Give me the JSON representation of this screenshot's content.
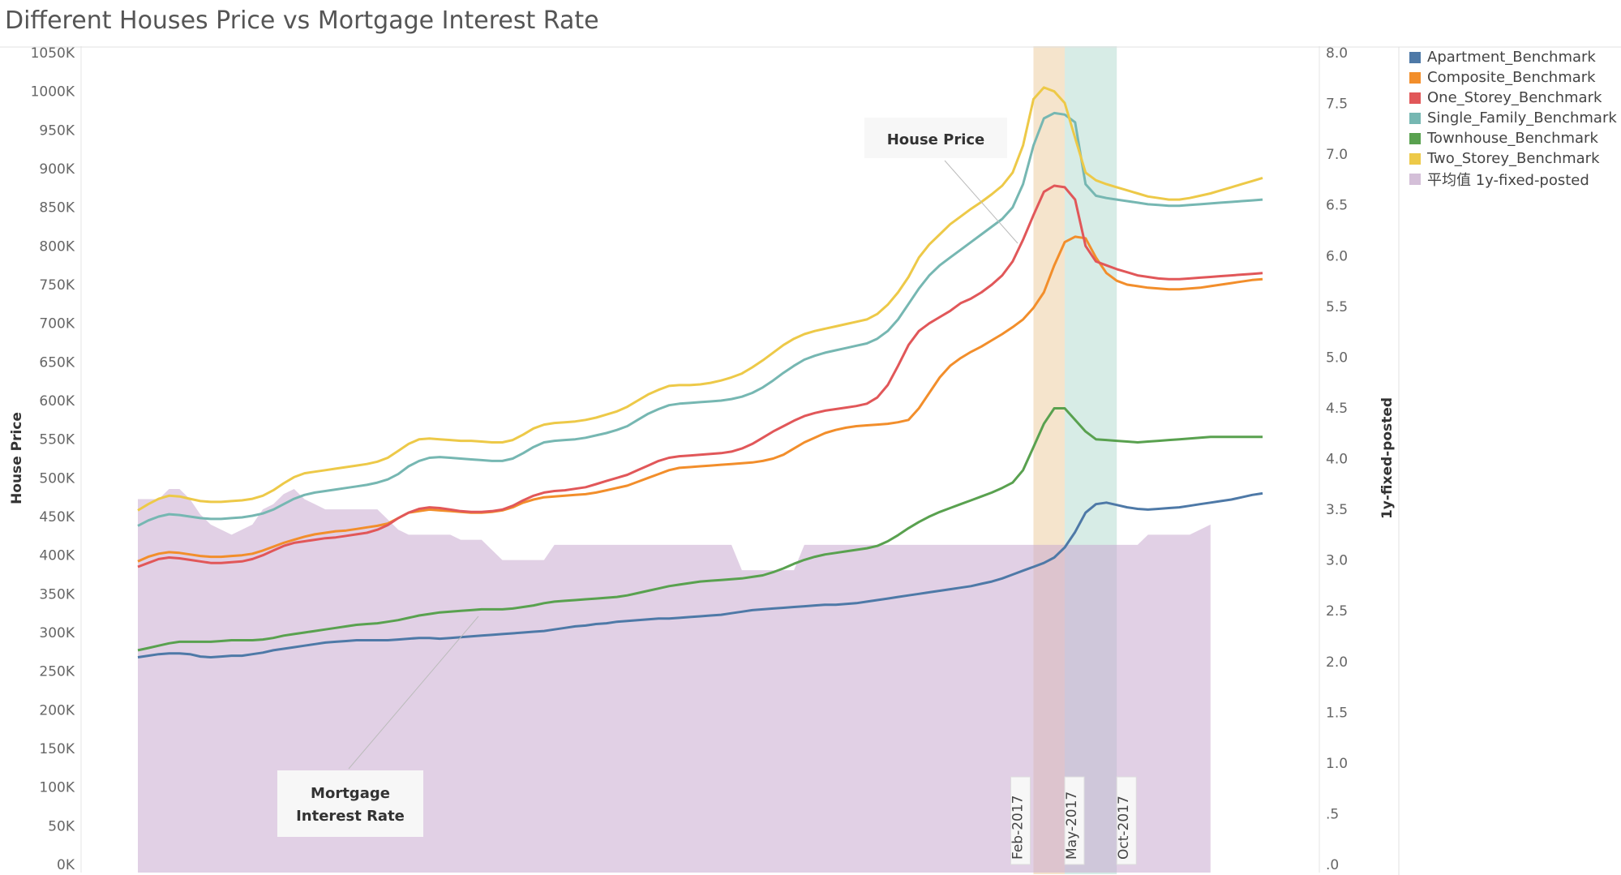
{
  "title": "Different Houses Price vs Mortgage Interest Rate",
  "chart_data": {
    "type": "line",
    "title": "Different Houses Price vs Mortgage Interest Rate",
    "ylabel": "House Price",
    "y2label": "1y-fixed-posted",
    "ylim": [
      0,
      1050
    ],
    "y2lim": [
      0,
      8
    ],
    "grid": false,
    "legend_position": "right",
    "y_ticks": [
      "0K",
      "50K",
      "100K",
      "150K",
      "200K",
      "250K",
      "300K",
      "350K",
      "400K",
      "450K",
      "500K",
      "550K",
      "600K",
      "650K",
      "700K",
      "750K",
      "800K",
      "850K",
      "900K",
      "950K",
      "1000K",
      "1050K"
    ],
    "y2_ticks": [
      ".0",
      ".5",
      "1.0",
      "1.5",
      "2.0",
      "2.5",
      "3.0",
      "3.5",
      "4.0",
      "4.5",
      "5.0",
      "5.5",
      "6.0",
      "6.5",
      "7.0",
      "7.5",
      "8.0"
    ],
    "x": [
      0,
      1,
      2,
      3,
      4,
      5,
      6,
      7,
      8,
      9,
      10,
      11,
      12,
      13,
      14,
      15,
      16,
      17,
      18,
      19,
      20,
      21,
      22,
      23,
      24,
      25,
      26,
      27,
      28,
      29,
      30,
      31,
      32,
      33,
      34,
      35,
      36,
      37,
      38,
      39,
      40,
      41,
      42,
      43,
      44,
      45,
      46,
      47,
      48,
      49,
      50,
      51,
      52,
      53,
      54,
      55,
      56,
      57,
      58,
      59,
      60,
      61,
      62,
      63,
      64,
      65,
      66,
      67,
      68,
      69,
      70,
      71,
      72,
      73,
      74,
      75,
      76,
      77,
      78,
      79,
      80,
      81,
      82,
      83,
      84,
      85,
      86,
      87,
      88,
      89,
      90,
      91,
      92,
      93,
      94,
      95,
      96,
      97,
      98,
      99,
      100,
      101,
      102,
      103,
      104,
      105,
      106,
      107,
      108
    ],
    "series": [
      {
        "name": "Apartment_Benchmark",
        "color": "#4e79a7",
        "values": [
          268,
          270,
          272,
          273,
          273,
          272,
          269,
          268,
          269,
          270,
          270,
          272,
          274,
          277,
          279,
          281,
          283,
          285,
          287,
          288,
          289,
          290,
          290,
          290,
          290,
          291,
          292,
          293,
          293,
          292,
          293,
          294,
          295,
          296,
          297,
          298,
          299,
          300,
          301,
          302,
          304,
          306,
          308,
          309,
          311,
          312,
          314,
          315,
          316,
          317,
          318,
          318,
          319,
          320,
          321,
          322,
          323,
          325,
          327,
          329,
          330,
          331,
          332,
          333,
          334,
          335,
          336,
          336,
          337,
          338,
          340,
          342,
          344,
          346,
          348,
          350,
          352,
          354,
          356,
          358,
          360,
          363,
          366,
          370,
          375,
          380,
          385,
          390,
          397,
          410,
          430,
          455,
          466,
          468,
          465,
          462,
          460,
          459,
          460,
          461,
          462,
          464,
          466,
          468,
          470,
          472,
          475,
          478,
          480
        ]
      },
      {
        "name": "Composite_Benchmark",
        "color": "#f28e2b",
        "values": [
          392,
          398,
          402,
          404,
          403,
          401,
          399,
          398,
          398,
          399,
          400,
          402,
          406,
          411,
          416,
          420,
          424,
          427,
          429,
          431,
          432,
          434,
          436,
          438,
          441,
          448,
          455,
          457,
          459,
          458,
          457,
          456,
          455,
          455,
          456,
          458,
          462,
          468,
          472,
          475,
          476,
          477,
          478,
          479,
          481,
          484,
          487,
          490,
          495,
          500,
          505,
          510,
          513,
          514,
          515,
          516,
          517,
          518,
          519,
          520,
          522,
          525,
          530,
          538,
          546,
          552,
          558,
          562,
          565,
          567,
          568,
          569,
          570,
          572,
          575,
          590,
          610,
          630,
          645,
          655,
          663,
          670,
          678,
          686,
          695,
          705,
          720,
          740,
          775,
          805,
          812,
          810,
          785,
          765,
          755,
          750,
          748,
          746,
          745,
          744,
          744,
          745,
          746,
          748,
          750,
          752,
          754,
          756,
          757
        ]
      },
      {
        "name": "One_Storey_Benchmark",
        "color": "#e15759",
        "values": [
          385,
          390,
          395,
          397,
          396,
          394,
          392,
          390,
          390,
          391,
          392,
          395,
          400,
          406,
          412,
          416,
          418,
          420,
          422,
          423,
          425,
          427,
          429,
          433,
          439,
          448,
          455,
          460,
          462,
          461,
          459,
          457,
          456,
          456,
          457,
          459,
          464,
          471,
          477,
          481,
          483,
          484,
          486,
          488,
          492,
          496,
          500,
          504,
          510,
          516,
          522,
          526,
          528,
          529,
          530,
          531,
          532,
          534,
          538,
          544,
          552,
          560,
          567,
          574,
          580,
          584,
          587,
          589,
          591,
          593,
          596,
          604,
          620,
          645,
          672,
          690,
          700,
          708,
          716,
          726,
          732,
          740,
          750,
          762,
          780,
          808,
          840,
          870,
          878,
          876,
          860,
          800,
          780,
          775,
          770,
          766,
          762,
          760,
          758,
          757,
          757,
          758,
          759,
          760,
          761,
          762,
          763,
          764,
          765
        ]
      },
      {
        "name": "Single_Family_Benchmark",
        "color": "#76b7b2",
        "values": [
          438,
          445,
          450,
          453,
          452,
          450,
          448,
          447,
          447,
          448,
          449,
          451,
          454,
          459,
          466,
          473,
          478,
          481,
          483,
          485,
          487,
          489,
          491,
          494,
          498,
          505,
          515,
          522,
          526,
          527,
          526,
          525,
          524,
          523,
          522,
          522,
          525,
          532,
          540,
          546,
          548,
          549,
          550,
          552,
          555,
          558,
          562,
          567,
          575,
          583,
          589,
          594,
          596,
          597,
          598,
          599,
          600,
          602,
          605,
          610,
          617,
          626,
          636,
          645,
          653,
          658,
          662,
          665,
          668,
          671,
          674,
          680,
          690,
          705,
          725,
          745,
          762,
          775,
          785,
          795,
          805,
          815,
          825,
          835,
          850,
          880,
          930,
          965,
          972,
          970,
          960,
          880,
          865,
          862,
          860,
          858,
          856,
          854,
          853,
          852,
          852,
          853,
          854,
          855,
          856,
          857,
          858,
          859,
          860
        ]
      },
      {
        "name": "Townhouse_Benchmark",
        "color": "#59a14f",
        "values": [
          277,
          280,
          283,
          286,
          288,
          288,
          288,
          288,
          289,
          290,
          290,
          290,
          291,
          293,
          296,
          298,
          300,
          302,
          304,
          306,
          308,
          310,
          311,
          312,
          314,
          316,
          319,
          322,
          324,
          326,
          327,
          328,
          329,
          330,
          330,
          330,
          331,
          333,
          335,
          338,
          340,
          341,
          342,
          343,
          344,
          345,
          346,
          348,
          351,
          354,
          357,
          360,
          362,
          364,
          366,
          367,
          368,
          369,
          370,
          372,
          374,
          378,
          383,
          389,
          394,
          398,
          401,
          403,
          405,
          407,
          409,
          412,
          418,
          426,
          435,
          443,
          450,
          456,
          461,
          466,
          471,
          476,
          481,
          487,
          494,
          510,
          540,
          570,
          590,
          590,
          575,
          560,
          550,
          549,
          548,
          547,
          546,
          547,
          548,
          549,
          550,
          551,
          552,
          553,
          553,
          553,
          553,
          553,
          553
        ]
      },
      {
        "name": "Two_Storey_Benchmark",
        "color": "#edc948",
        "values": [
          458,
          466,
          473,
          477,
          476,
          473,
          470,
          469,
          469,
          470,
          471,
          473,
          477,
          484,
          493,
          501,
          506,
          508,
          510,
          512,
          514,
          516,
          518,
          521,
          526,
          535,
          544,
          550,
          551,
          550,
          549,
          548,
          548,
          547,
          546,
          546,
          549,
          556,
          564,
          569,
          571,
          572,
          573,
          575,
          578,
          582,
          586,
          592,
          600,
          608,
          614,
          619,
          620,
          620,
          621,
          623,
          626,
          630,
          635,
          643,
          652,
          662,
          672,
          680,
          686,
          690,
          693,
          696,
          699,
          702,
          705,
          712,
          724,
          740,
          760,
          785,
          802,
          815,
          828,
          838,
          848,
          857,
          867,
          878,
          895,
          930,
          990,
          1005,
          1000,
          985,
          940,
          895,
          885,
          880,
          876,
          872,
          868,
          864,
          862,
          860,
          860,
          862,
          865,
          868,
          872,
          876,
          880,
          884,
          888
        ]
      },
      {
        "name": "平均值 1y-fixed-posted",
        "color": "#d4bfd8",
        "values": [
          3.6,
          3.6,
          3.6,
          3.7,
          3.7,
          3.6,
          3.5,
          3.4,
          3.3,
          3.3,
          3.4,
          3.45,
          3.5,
          3.6,
          3.7,
          3.6,
          3.5,
          3.5,
          3.5,
          3.5,
          3.5,
          3.5,
          3.5,
          3.5,
          3.5,
          3.4,
          3.3,
          3.2,
          3.2,
          3.2,
          3.15,
          3.1,
          3.1,
          3.1,
          3.05,
          3.0,
          3.0,
          3.0,
          3.0,
          3.1,
          3.15,
          3.15,
          3.15,
          3.15,
          3.15,
          3.15,
          3.15,
          3.15,
          3.15,
          3.15,
          3.15,
          3.15,
          3.15,
          3.15,
          3.15,
          3.15,
          3.15,
          3.15,
          3.15,
          3.15,
          3.15,
          3.15,
          3.15,
          3.15,
          3.15,
          3.15,
          3.15,
          3.15,
          3.15,
          3.15,
          3.15,
          3.15,
          3.15,
          3.15,
          3.15,
          3.15,
          3.15,
          3.15,
          3.15,
          3.15,
          3.15,
          3.15,
          3.15,
          3.15,
          3.15,
          3.15,
          3.15,
          3.15,
          3.15,
          3.15,
          3.15,
          3.15,
          3.15,
          3.15,
          3.15,
          3.15,
          3.15,
          3.15,
          3.15,
          3.15,
          3.2,
          3.25,
          3.25,
          3.25,
          3.25,
          3.25,
          3.25,
          3.3,
          3.35
        ]
      }
    ],
    "rate_area_points": [
      [
        0,
        3.6
      ],
      [
        2,
        3.6
      ],
      [
        3,
        3.7
      ],
      [
        4,
        3.7
      ],
      [
        5,
        3.6
      ],
      [
        6,
        3.45
      ],
      [
        7,
        3.35
      ],
      [
        8,
        3.3
      ],
      [
        9,
        3.25
      ],
      [
        10,
        3.3
      ],
      [
        11,
        3.35
      ],
      [
        12,
        3.5
      ],
      [
        13,
        3.55
      ],
      [
        14,
        3.65
      ],
      [
        15,
        3.7
      ],
      [
        16,
        3.6
      ],
      [
        17,
        3.55
      ],
      [
        18,
        3.5
      ],
      [
        23,
        3.5
      ],
      [
        24,
        3.4
      ],
      [
        25,
        3.3
      ],
      [
        26,
        3.25
      ],
      [
        30,
        3.25
      ],
      [
        31,
        3.2
      ],
      [
        33,
        3.2
      ],
      [
        35,
        3.0
      ],
      [
        39,
        3.0
      ],
      [
        40,
        3.15
      ],
      [
        55,
        3.15
      ],
      [
        56,
        3.15
      ],
      [
        57,
        3.15
      ],
      [
        58,
        2.9
      ],
      [
        61,
        2.9
      ],
      [
        63,
        2.9
      ],
      [
        64,
        3.15
      ],
      [
        76,
        3.15
      ],
      [
        77,
        3.15
      ],
      [
        93,
        3.15
      ],
      [
        95,
        3.15
      ],
      [
        96,
        3.15
      ],
      [
        97,
        3.25
      ],
      [
        100,
        3.25
      ],
      [
        101,
        3.25
      ],
      [
        102,
        3.3
      ],
      [
        103,
        3.35
      ]
    ],
    "highlight_bands": [
      {
        "label": "Feb-2017",
        "start": 86,
        "end": 89,
        "color": "#f5e4cc"
      },
      {
        "label": "May-2017",
        "start": 89,
        "end": 94,
        "color": "#d7ece6"
      }
    ],
    "band_markers": [
      "Feb-2017",
      "May-2017",
      "Oct-2017"
    ],
    "annotations": [
      "House Price",
      "Mortgage\nInterest Rate"
    ],
    "y2_area_max": 3.7
  }
}
